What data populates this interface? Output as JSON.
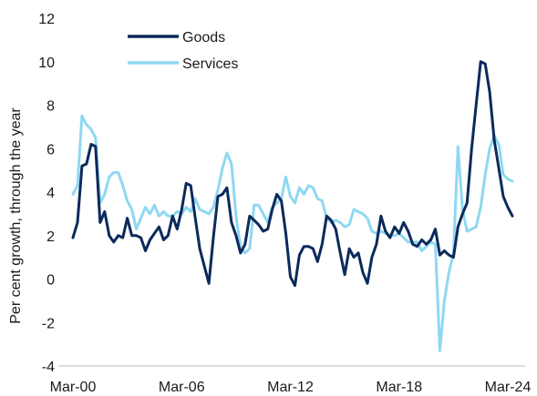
{
  "chart_data": {
    "type": "line",
    "ylabel": "Per cent growth, through the year",
    "ylim": [
      -4,
      12
    ],
    "y_ticks": [
      "-4",
      "-2",
      "0",
      "2",
      "4",
      "6",
      "8",
      "10",
      "12"
    ],
    "x_tick_labels": [
      "Mar-00",
      "Mar-06",
      "Mar-12",
      "Mar-18",
      "Mar-24"
    ],
    "x_range": [
      "2000-03",
      "2024-06"
    ],
    "grid": false,
    "legend_position": "top-left",
    "series": [
      {
        "name": "Goods",
        "color": "#0b2a5b",
        "points": [
          [
            "2000-03",
            1.9
          ],
          [
            "2000-06",
            2.6
          ],
          [
            "2000-09",
            5.2
          ],
          [
            "2000-12",
            5.3
          ],
          [
            "2001-03",
            6.2
          ],
          [
            "2001-06",
            6.1
          ],
          [
            "2001-09",
            2.6
          ],
          [
            "2001-12",
            3.1
          ],
          [
            "2002-03",
            2.0
          ],
          [
            "2002-06",
            1.7
          ],
          [
            "2002-09",
            2.0
          ],
          [
            "2002-12",
            1.9
          ],
          [
            "2003-03",
            2.8
          ],
          [
            "2003-06",
            2.0
          ],
          [
            "2003-09",
            2.0
          ],
          [
            "2003-12",
            1.9
          ],
          [
            "2004-03",
            1.3
          ],
          [
            "2004-06",
            1.8
          ],
          [
            "2004-09",
            2.1
          ],
          [
            "2004-12",
            2.4
          ],
          [
            "2005-03",
            1.8
          ],
          [
            "2005-06",
            2.0
          ],
          [
            "2005-09",
            2.9
          ],
          [
            "2005-12",
            2.3
          ],
          [
            "2006-03",
            3.2
          ],
          [
            "2006-06",
            4.4
          ],
          [
            "2006-09",
            4.3
          ],
          [
            "2006-12",
            2.8
          ],
          [
            "2007-03",
            1.4
          ],
          [
            "2007-06",
            0.6
          ],
          [
            "2007-09",
            -0.2
          ],
          [
            "2007-12",
            1.9
          ],
          [
            "2008-03",
            3.8
          ],
          [
            "2008-06",
            3.9
          ],
          [
            "2008-09",
            4.2
          ],
          [
            "2008-12",
            2.6
          ],
          [
            "2009-03",
            2.0
          ],
          [
            "2009-06",
            1.2
          ],
          [
            "2009-09",
            1.6
          ],
          [
            "2009-12",
            2.9
          ],
          [
            "2010-03",
            2.7
          ],
          [
            "2010-06",
            2.5
          ],
          [
            "2010-09",
            2.2
          ],
          [
            "2010-12",
            2.3
          ],
          [
            "2011-03",
            3.2
          ],
          [
            "2011-06",
            3.9
          ],
          [
            "2011-09",
            3.6
          ],
          [
            "2011-12",
            2.1
          ],
          [
            "2012-03",
            0.1
          ],
          [
            "2012-06",
            -0.3
          ],
          [
            "2012-09",
            1.1
          ],
          [
            "2012-12",
            1.5
          ],
          [
            "2013-03",
            1.5
          ],
          [
            "2013-06",
            1.4
          ],
          [
            "2013-09",
            0.8
          ],
          [
            "2013-12",
            1.6
          ],
          [
            "2014-03",
            2.9
          ],
          [
            "2014-06",
            2.7
          ],
          [
            "2014-09",
            2.3
          ],
          [
            "2014-12",
            1.2
          ],
          [
            "2015-03",
            0.2
          ],
          [
            "2015-06",
            1.4
          ],
          [
            "2015-09",
            1.0
          ],
          [
            "2015-12",
            1.2
          ],
          [
            "2016-03",
            0.3
          ],
          [
            "2016-06",
            -0.2
          ],
          [
            "2016-09",
            1.0
          ],
          [
            "2016-12",
            1.6
          ],
          [
            "2017-03",
            2.9
          ],
          [
            "2017-06",
            2.2
          ],
          [
            "2017-09",
            1.9
          ],
          [
            "2017-12",
            2.4
          ],
          [
            "2018-03",
            2.1
          ],
          [
            "2018-06",
            2.6
          ],
          [
            "2018-09",
            2.2
          ],
          [
            "2018-12",
            1.6
          ],
          [
            "2019-03",
            1.5
          ],
          [
            "2019-06",
            1.8
          ],
          [
            "2019-09",
            1.6
          ],
          [
            "2019-12",
            1.8
          ],
          [
            "2020-03",
            2.3
          ],
          [
            "2020-06",
            1.1
          ],
          [
            "2020-09",
            1.3
          ],
          [
            "2020-12",
            1.1
          ],
          [
            "2021-03",
            1.0
          ],
          [
            "2021-06",
            2.4
          ],
          [
            "2021-09",
            3.0
          ],
          [
            "2021-12",
            3.5
          ],
          [
            "2022-03",
            6.0
          ],
          [
            "2022-06",
            8.0
          ],
          [
            "2022-09",
            10.0
          ],
          [
            "2022-12",
            9.9
          ],
          [
            "2023-03",
            8.6
          ],
          [
            "2023-06",
            6.4
          ],
          [
            "2023-09",
            5.1
          ],
          [
            "2023-12",
            3.8
          ],
          [
            "2024-03",
            3.3
          ],
          [
            "2024-06",
            2.9
          ]
        ]
      },
      {
        "name": "Services",
        "color": "#8fd8f2",
        "points": [
          [
            "2000-03",
            3.9
          ],
          [
            "2000-06",
            4.3
          ],
          [
            "2000-09",
            7.5
          ],
          [
            "2000-12",
            7.1
          ],
          [
            "2001-03",
            6.9
          ],
          [
            "2001-06",
            6.5
          ],
          [
            "2001-09",
            3.5
          ],
          [
            "2001-12",
            3.9
          ],
          [
            "2002-03",
            4.7
          ],
          [
            "2002-06",
            4.9
          ],
          [
            "2002-09",
            4.9
          ],
          [
            "2002-12",
            4.3
          ],
          [
            "2003-03",
            3.6
          ],
          [
            "2003-06",
            3.2
          ],
          [
            "2003-09",
            2.3
          ],
          [
            "2003-12",
            2.8
          ],
          [
            "2004-03",
            3.3
          ],
          [
            "2004-06",
            3.0
          ],
          [
            "2004-09",
            3.4
          ],
          [
            "2004-12",
            2.9
          ],
          [
            "2005-03",
            3.1
          ],
          [
            "2005-06",
            2.9
          ],
          [
            "2005-09",
            2.9
          ],
          [
            "2005-12",
            3.1
          ],
          [
            "2006-03",
            3.0
          ],
          [
            "2006-06",
            3.3
          ],
          [
            "2006-09",
            3.1
          ],
          [
            "2006-12",
            3.7
          ],
          [
            "2007-03",
            3.2
          ],
          [
            "2007-06",
            3.1
          ],
          [
            "2007-09",
            3.0
          ],
          [
            "2007-12",
            3.3
          ],
          [
            "2008-03",
            4.1
          ],
          [
            "2008-06",
            5.1
          ],
          [
            "2008-09",
            5.8
          ],
          [
            "2008-12",
            5.3
          ],
          [
            "2009-03",
            2.9
          ],
          [
            "2009-06",
            1.5
          ],
          [
            "2009-09",
            1.2
          ],
          [
            "2009-12",
            1.4
          ],
          [
            "2010-03",
            3.4
          ],
          [
            "2010-06",
            3.4
          ],
          [
            "2010-09",
            3.0
          ],
          [
            "2010-12",
            2.6
          ],
          [
            "2011-03",
            3.3
          ],
          [
            "2011-06",
            3.5
          ],
          [
            "2011-09",
            3.7
          ],
          [
            "2011-12",
            4.7
          ],
          [
            "2012-03",
            3.8
          ],
          [
            "2012-06",
            3.5
          ],
          [
            "2012-09",
            4.2
          ],
          [
            "2012-12",
            3.9
          ],
          [
            "2013-03",
            4.3
          ],
          [
            "2013-06",
            4.2
          ],
          [
            "2013-09",
            3.7
          ],
          [
            "2013-12",
            3.6
          ],
          [
            "2014-03",
            2.8
          ],
          [
            "2014-06",
            2.6
          ],
          [
            "2014-09",
            2.7
          ],
          [
            "2014-12",
            2.6
          ],
          [
            "2015-03",
            2.4
          ],
          [
            "2015-06",
            2.5
          ],
          [
            "2015-09",
            3.2
          ],
          [
            "2015-12",
            3.1
          ],
          [
            "2016-03",
            3.0
          ],
          [
            "2016-06",
            2.8
          ],
          [
            "2016-09",
            2.2
          ],
          [
            "2016-12",
            2.1
          ],
          [
            "2017-03",
            2.2
          ],
          [
            "2017-06",
            2.1
          ],
          [
            "2017-09",
            2.0
          ],
          [
            "2017-12",
            2.0
          ],
          [
            "2018-03",
            2.1
          ],
          [
            "2018-06",
            1.9
          ],
          [
            "2018-09",
            1.7
          ],
          [
            "2018-12",
            1.7
          ],
          [
            "2019-03",
            1.7
          ],
          [
            "2019-06",
            1.3
          ],
          [
            "2019-09",
            1.5
          ],
          [
            "2019-12",
            1.7
          ],
          [
            "2020-03",
            1.6
          ],
          [
            "2020-06",
            -3.3
          ],
          [
            "2020-09",
            -1.0
          ],
          [
            "2020-12",
            0.3
          ],
          [
            "2021-03",
            1.2
          ],
          [
            "2021-06",
            6.1
          ],
          [
            "2021-09",
            3.2
          ],
          [
            "2021-12",
            2.2
          ],
          [
            "2022-03",
            2.3
          ],
          [
            "2022-06",
            2.4
          ],
          [
            "2022-09",
            3.3
          ],
          [
            "2022-12",
            4.8
          ],
          [
            "2023-03",
            6.0
          ],
          [
            "2023-06",
            6.6
          ],
          [
            "2023-09",
            6.2
          ],
          [
            "2023-12",
            4.8
          ],
          [
            "2024-03",
            4.6
          ],
          [
            "2024-06",
            4.5
          ]
        ]
      }
    ]
  }
}
